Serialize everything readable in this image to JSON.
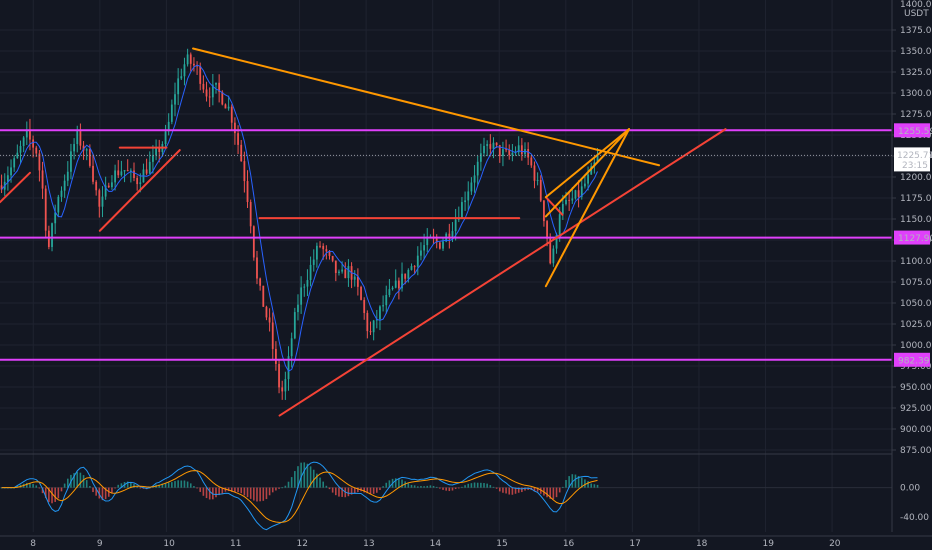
{
  "chart_data": {
    "type": "line",
    "axis": {
      "currency": "USDT",
      "top_label": "1400.00",
      "price_ticks": [
        1375,
        1350,
        1325,
        1300,
        1275,
        1250,
        1225,
        1200,
        1175,
        1150,
        1125,
        1100,
        1075,
        1050,
        1025,
        1000,
        975,
        950,
        925,
        900,
        875
      ],
      "ylim": [
        875,
        1400
      ],
      "xlim": [
        7.5,
        20.9
      ],
      "x_ticks": [
        8,
        9,
        10,
        11,
        12,
        13,
        14,
        15,
        16,
        17,
        18,
        19,
        20
      ],
      "macd_ticks": [
        "0.00",
        "-40.00"
      ],
      "macd_lim": [
        -60,
        40
      ]
    },
    "current_price": {
      "value": "1225.71",
      "countdown": "23:15",
      "color": "#ffffff"
    },
    "horizontal_levels": [
      {
        "value": 1255.59,
        "label": "1255.59",
        "color": "#e040fb"
      },
      {
        "value": 1127.9,
        "label": "1127.90",
        "color": "#e040fb"
      },
      {
        "value": 982.39,
        "label": "982.39",
        "color": "#e040fb"
      }
    ],
    "trendlines": [
      {
        "color": "#f44336",
        "points": [
          [
            7.5,
            1170
          ],
          [
            7.95,
            1205
          ]
        ]
      },
      {
        "color": "#f44336",
        "points": [
          [
            9.0,
            1136
          ],
          [
            10.2,
            1232
          ]
        ]
      },
      {
        "color": "#f44336",
        "points": [
          [
            9.3,
            1235
          ],
          [
            10.0,
            1235
          ]
        ]
      },
      {
        "color": "#f44336",
        "points": [
          [
            11.4,
            1151
          ],
          [
            15.3,
            1151
          ]
        ]
      },
      {
        "color": "#f44336",
        "points": [
          [
            11.7,
            916
          ],
          [
            18.4,
            1257
          ]
        ]
      },
      {
        "color": "#f44336",
        "points": [
          [
            15.7,
            1176
          ],
          [
            15.95,
            1155
          ]
        ]
      },
      {
        "color": "#ff9800",
        "points": [
          [
            10.4,
            1353
          ],
          [
            17.4,
            1214
          ]
        ]
      },
      {
        "color": "#ff9800",
        "points": [
          [
            15.7,
            1070
          ],
          [
            16.95,
            1257
          ]
        ]
      },
      {
        "color": "#ff9800",
        "points": [
          [
            15.7,
            1153
          ],
          [
            16.95,
            1257
          ]
        ]
      },
      {
        "color": "#ff9800",
        "points": [
          [
            15.7,
            1176
          ],
          [
            16.95,
            1257
          ]
        ]
      }
    ],
    "price_path": [
      [
        7.5,
        1190
      ],
      [
        7.7,
        1215
      ],
      [
        7.9,
        1250
      ],
      [
        8.05,
        1230
      ],
      [
        8.15,
        1180
      ],
      [
        8.22,
        1110
      ],
      [
        8.35,
        1170
      ],
      [
        8.5,
        1205
      ],
      [
        8.65,
        1250
      ],
      [
        8.85,
        1220
      ],
      [
        9.0,
        1160
      ],
      [
        9.15,
        1200
      ],
      [
        9.35,
        1210
      ],
      [
        9.55,
        1195
      ],
      [
        9.8,
        1220
      ],
      [
        10.0,
        1250
      ],
      [
        10.15,
        1310
      ],
      [
        10.3,
        1340
      ],
      [
        10.45,
        1330
      ],
      [
        10.6,
        1300
      ],
      [
        10.75,
        1305
      ],
      [
        10.95,
        1280
      ],
      [
        11.05,
        1250
      ],
      [
        11.15,
        1210
      ],
      [
        11.25,
        1160
      ],
      [
        11.35,
        1080
      ],
      [
        11.45,
        1050
      ],
      [
        11.55,
        1020
      ],
      [
        11.65,
        970
      ],
      [
        11.72,
        940
      ],
      [
        11.8,
        960
      ],
      [
        11.9,
        1020
      ],
      [
        12.0,
        1060
      ],
      [
        12.15,
        1090
      ],
      [
        12.3,
        1120
      ],
      [
        12.45,
        1100
      ],
      [
        12.6,
        1080
      ],
      [
        12.75,
        1090
      ],
      [
        12.9,
        1060
      ],
      [
        13.05,
        1010
      ],
      [
        13.2,
        1040
      ],
      [
        13.35,
        1060
      ],
      [
        13.5,
        1075
      ],
      [
        13.65,
        1090
      ],
      [
        13.8,
        1110
      ],
      [
        13.95,
        1125
      ],
      [
        14.1,
        1120
      ],
      [
        14.25,
        1135
      ],
      [
        14.4,
        1160
      ],
      [
        14.55,
        1190
      ],
      [
        14.7,
        1220
      ],
      [
        14.85,
        1240
      ],
      [
        15.0,
        1230
      ],
      [
        15.15,
        1225
      ],
      [
        15.3,
        1235
      ],
      [
        15.45,
        1220
      ],
      [
        15.6,
        1185
      ],
      [
        15.7,
        1140
      ],
      [
        15.78,
        1090
      ],
      [
        15.9,
        1160
      ],
      [
        16.05,
        1170
      ],
      [
        16.2,
        1180
      ],
      [
        16.35,
        1200
      ],
      [
        16.5,
        1226
      ]
    ],
    "moving_average": {
      "color": "#2962ff",
      "window": 6
    },
    "candle_colors": {
      "up": "#26a69a",
      "down": "#ef5350"
    },
    "macd_line_colors": {
      "macd": "#2196f3",
      "signal": "#ff9800"
    }
  }
}
